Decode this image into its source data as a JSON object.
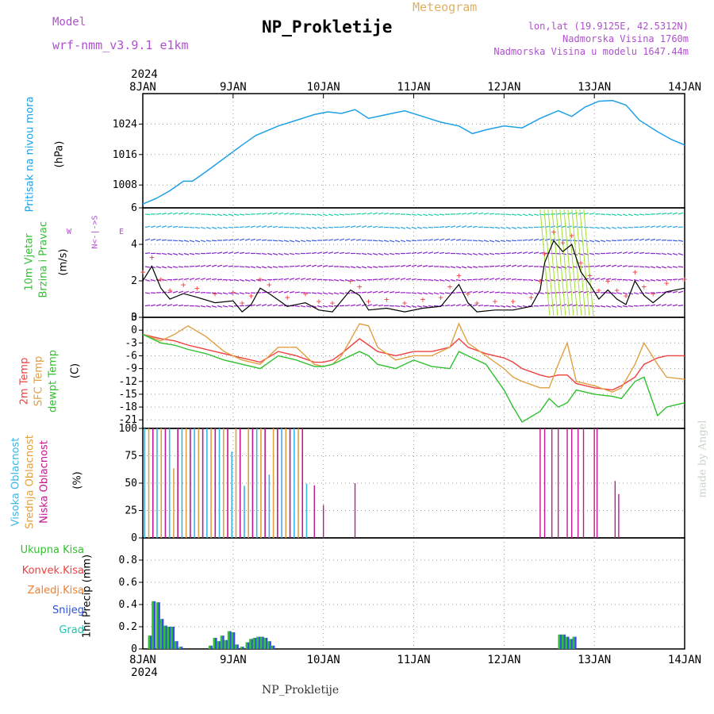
{
  "header": {
    "model_label": "Model",
    "model_name": "wrf-nmm_v3.9.1 e1km",
    "title": "NP_Prokletije",
    "meteogram_label": "Meteogram",
    "lonlat": "lon,lat (19.9125E, 42.5312N)",
    "altitude": "Nadmorska Visina 1760m",
    "model_altitude": "Nadmorska Visina u modelu 1647.44m"
  },
  "time_axis": {
    "labels": [
      "8JAN",
      "9JAN",
      "10JAN",
      "11JAN",
      "12JAN",
      "13JAN",
      "14JAN"
    ],
    "year": "2024"
  },
  "panel_labels": {
    "pressure": "Pritisak na nivou mora",
    "pressure_unit": "(hPa)",
    "wind1": "10m Vjetar",
    "wind2": "Brzina i Pravac",
    "wind_unit": "(m/s)",
    "compass_w": "W",
    "compass_e": "E",
    "compass_n": "N<-|->S",
    "temp_2m": "2m Temp",
    "temp_sfc": "SFC Temp",
    "temp_dew": "dewpt Temp",
    "temp_unit": "(C)",
    "cloud_high": "Visoka Oblacnost",
    "cloud_mid": "Srednja Oblacnost",
    "cloud_low": "Niska Oblacnost",
    "cloud_unit": "(%)",
    "precip_unit": "1hr Precip (mm)",
    "legend_total": "Ukupna Kisa",
    "legend_conv": "Konvek.Kisa",
    "legend_frz": "Zaledj.Kisa",
    "legend_snow": "Snijeg",
    "legend_grad": "Grad"
  },
  "footer": "NP_Prokletije",
  "watermark": "made by Angel",
  "colors": {
    "pressure": "#1ea0e6",
    "temp_2m": "#f04040",
    "temp_sfc": "#e0a040",
    "temp_dew": "#30c030",
    "cloud_high": "#3cb4e6",
    "cloud_mid": "#e0a040",
    "cloud_low": "#c01890",
    "precip_total": "#30c030",
    "precip_snow": "#3050e0",
    "purple_text": "#b050d0"
  },
  "chart_data": [
    {
      "type": "line",
      "name": "pressure",
      "ylim": [
        1002,
        1032
      ],
      "yticks": [
        1008,
        1016,
        1024
      ],
      "x_days": [
        0,
        0.15,
        0.3,
        0.45,
        0.55,
        0.7,
        0.9,
        1.1,
        1.25,
        1.5,
        1.7,
        1.9,
        2.05,
        2.2,
        2.35,
        2.5,
        2.7,
        2.9,
        3.1,
        3.3,
        3.5,
        3.65,
        3.8,
        4.0,
        4.2,
        4.4,
        4.6,
        4.75,
        4.9,
        5.05,
        5.2,
        5.35,
        5.5,
        5.7,
        5.85,
        6.0
      ],
      "values": [
        1003.0,
        1004.5,
        1006.5,
        1009.0,
        1009.0,
        1011.5,
        1015.0,
        1018.5,
        1021.0,
        1023.5,
        1025.0,
        1026.5,
        1027.2,
        1026.8,
        1027.8,
        1025.5,
        1026.5,
        1027.5,
        1026.0,
        1024.5,
        1023.5,
        1021.5,
        1022.5,
        1023.5,
        1023.0,
        1025.5,
        1027.5,
        1026.0,
        1028.5,
        1030.0,
        1030.2,
        1029.0,
        1025.0,
        1022.0,
        1020.0,
        1018.5
      ]
    },
    {
      "type": "line",
      "name": "wind_speed",
      "ylim": [
        0,
        6
      ],
      "yticks": [
        0,
        2,
        4,
        6
      ],
      "x_days": [
        0,
        0.1,
        0.2,
        0.3,
        0.45,
        0.6,
        0.8,
        1.0,
        1.1,
        1.2,
        1.3,
        1.4,
        1.6,
        1.8,
        1.95,
        2.1,
        2.3,
        2.4,
        2.5,
        2.7,
        2.9,
        3.1,
        3.3,
        3.4,
        3.5,
        3.6,
        3.7,
        3.9,
        4.1,
        4.3,
        4.4,
        4.45,
        4.55,
        4.65,
        4.75,
        4.85,
        4.95,
        5.05,
        5.15,
        5.25,
        5.35,
        5.45,
        5.55,
        5.65,
        5.8,
        6.0
      ],
      "values": [
        2.0,
        2.8,
        1.6,
        1.0,
        1.3,
        1.1,
        0.8,
        0.9,
        0.3,
        0.7,
        1.6,
        1.3,
        0.6,
        0.8,
        0.4,
        0.3,
        1.5,
        1.2,
        0.4,
        0.5,
        0.3,
        0.5,
        0.6,
        1.2,
        1.8,
        0.8,
        0.3,
        0.4,
        0.4,
        0.6,
        1.5,
        3.0,
        4.2,
        3.6,
        4.0,
        2.5,
        1.8,
        1.0,
        1.5,
        1.0,
        0.7,
        2.0,
        1.2,
        0.8,
        1.4,
        1.6
      ]
    },
    {
      "type": "line",
      "name": "temperature",
      "ylim": [
        -23,
        3
      ],
      "yticks": [
        3,
        0,
        -3,
        -6,
        -9,
        -12,
        -15,
        -18,
        -21
      ],
      "x_days": [
        0,
        0.2,
        0.35,
        0.5,
        0.7,
        0.9,
        1.1,
        1.3,
        1.5,
        1.7,
        1.9,
        2.0,
        2.1,
        2.2,
        2.4,
        2.5,
        2.6,
        2.8,
        3.0,
        3.2,
        3.4,
        3.5,
        3.6,
        3.8,
        4.0,
        4.1,
        4.2,
        4.4,
        4.5,
        4.6,
        4.7,
        4.8,
        5.0,
        5.2,
        5.3,
        5.45,
        5.55,
        5.7,
        5.8,
        6.0
      ],
      "series": [
        {
          "name": "2m Temp",
          "values": [
            -1,
            -2,
            -2.5,
            -3.5,
            -4.5,
            -5.5,
            -6.5,
            -7.5,
            -5,
            -6,
            -7.5,
            -7.5,
            -7,
            -5.5,
            -2,
            -3.5,
            -5,
            -6,
            -5,
            -5,
            -4,
            -2,
            -4,
            -5.5,
            -6.5,
            -7.5,
            -9,
            -10.5,
            -11,
            -10.5,
            -10.5,
            -12.5,
            -13.5,
            -14,
            -13,
            -11,
            -8,
            -6.5,
            -6,
            -6
          ]
        },
        {
          "name": "SFC Temp",
          "values": [
            -1,
            -2.5,
            -1,
            1,
            -1.5,
            -5,
            -7,
            -8,
            -4,
            -4,
            -8,
            -8.5,
            -8,
            -6,
            1.5,
            1,
            -4,
            -7,
            -6,
            -6,
            -4,
            1.5,
            -3,
            -6,
            -9,
            -11,
            -12,
            -13.5,
            -13.5,
            -8,
            -3,
            -12,
            -13,
            -14.5,
            -13.5,
            -8,
            -3,
            -8,
            -11,
            -11.5
          ]
        },
        {
          "name": "dewpt Temp",
          "values": [
            -1,
            -3,
            -3.5,
            -4.5,
            -5.5,
            -7,
            -8,
            -9,
            -6,
            -7,
            -8.5,
            -8.5,
            -8,
            -7,
            -5,
            -6,
            -8,
            -9,
            -7,
            -8.5,
            -9,
            -5,
            -6,
            -8,
            -14,
            -18,
            -21.5,
            -19,
            -16,
            -18,
            -17,
            -14,
            -15,
            -15.5,
            -16,
            -12,
            -11,
            -20,
            -18,
            -17
          ]
        }
      ]
    },
    {
      "type": "bar",
      "name": "cloud_cover",
      "ylim": [
        0,
        100
      ],
      "yticks": [
        0,
        25,
        50,
        75,
        100
      ],
      "note": "hourly cloud cover (%)"
    },
    {
      "type": "bar",
      "name": "precipitation",
      "ylim": [
        0,
        1.0
      ],
      "yticks": [
        0,
        0.2,
        0.4,
        0.6,
        0.8
      ],
      "bars": [
        {
          "day": 0.08,
          "value": 0.12
        },
        {
          "day": 0.12,
          "value": 0.43
        },
        {
          "day": 0.17,
          "value": 0.42
        },
        {
          "day": 0.21,
          "value": 0.27
        },
        {
          "day": 0.25,
          "value": 0.21
        },
        {
          "day": 0.29,
          "value": 0.2
        },
        {
          "day": 0.33,
          "value": 0.2
        },
        {
          "day": 0.37,
          "value": 0.07
        },
        {
          "day": 0.42,
          "value": 0.02
        },
        {
          "day": 0.75,
          "value": 0.03
        },
        {
          "day": 0.8,
          "value": 0.1
        },
        {
          "day": 0.84,
          "value": 0.07
        },
        {
          "day": 0.88,
          "value": 0.12
        },
        {
          "day": 0.92,
          "value": 0.08
        },
        {
          "day": 0.96,
          "value": 0.16
        },
        {
          "day": 1.0,
          "value": 0.15
        },
        {
          "day": 1.04,
          "value": 0.04
        },
        {
          "day": 1.1,
          "value": 0.02
        },
        {
          "day": 1.16,
          "value": 0.06
        },
        {
          "day": 1.2,
          "value": 0.09
        },
        {
          "day": 1.24,
          "value": 0.1
        },
        {
          "day": 1.28,
          "value": 0.11
        },
        {
          "day": 1.32,
          "value": 0.11
        },
        {
          "day": 1.36,
          "value": 0.1
        },
        {
          "day": 1.4,
          "value": 0.07
        },
        {
          "day": 1.44,
          "value": 0.03
        },
        {
          "day": 4.62,
          "value": 0.13
        },
        {
          "day": 4.66,
          "value": 0.13
        },
        {
          "day": 4.7,
          "value": 0.11
        },
        {
          "day": 4.74,
          "value": 0.09
        },
        {
          "day": 4.78,
          "value": 0.11
        }
      ]
    }
  ]
}
